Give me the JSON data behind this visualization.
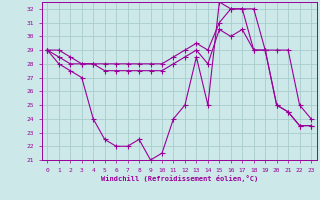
{
  "xlabel": "Windchill (Refroidissement éolien,°C)",
  "bg_color": "#cce8e8",
  "grid_color": "#aacccc",
  "line_color": "#990099",
  "xlim": [
    -0.5,
    23.5
  ],
  "ylim": [
    21,
    32.5
  ],
  "xticks": [
    0,
    1,
    2,
    3,
    4,
    5,
    6,
    7,
    8,
    9,
    10,
    11,
    12,
    13,
    14,
    15,
    16,
    17,
    18,
    19,
    20,
    21,
    22,
    23
  ],
  "yticks": [
    21,
    22,
    23,
    24,
    25,
    26,
    27,
    28,
    29,
    30,
    31,
    32
  ],
  "line1_x": [
    0,
    1,
    2,
    3,
    4,
    5,
    6,
    7,
    8,
    9,
    10,
    11,
    12,
    13,
    14,
    15,
    16,
    17,
    18,
    19,
    20,
    21,
    22,
    23
  ],
  "line1_y": [
    29,
    28,
    27.5,
    27,
    24,
    22.5,
    22,
    22,
    22.5,
    21,
    21.5,
    24,
    25,
    28.5,
    25,
    32.5,
    32,
    32,
    29,
    29,
    25,
    24.5,
    23.5,
    23.5
  ],
  "line2_x": [
    0,
    1,
    2,
    3,
    4,
    5,
    6,
    7,
    8,
    9,
    10,
    11,
    12,
    13,
    14,
    15,
    16,
    17,
    18,
    19,
    20,
    21,
    22,
    23
  ],
  "line2_y": [
    29,
    28.5,
    28,
    28,
    28,
    27.5,
    27.5,
    27.5,
    27.5,
    27.5,
    27.5,
    28,
    28.5,
    29,
    28,
    30.5,
    30,
    30.5,
    29,
    29,
    25,
    24.5,
    23.5,
    23.5
  ],
  "line3_x": [
    0,
    1,
    2,
    3,
    4,
    5,
    6,
    7,
    8,
    9,
    10,
    11,
    12,
    13,
    14,
    15,
    16,
    17,
    18,
    19,
    20,
    21,
    22,
    23
  ],
  "line3_y": [
    29,
    29,
    28.5,
    28,
    28,
    28,
    28,
    28,
    28,
    28,
    28,
    28.5,
    29,
    29.5,
    29,
    31,
    32,
    32,
    32,
    29,
    29,
    29,
    25,
    24
  ]
}
